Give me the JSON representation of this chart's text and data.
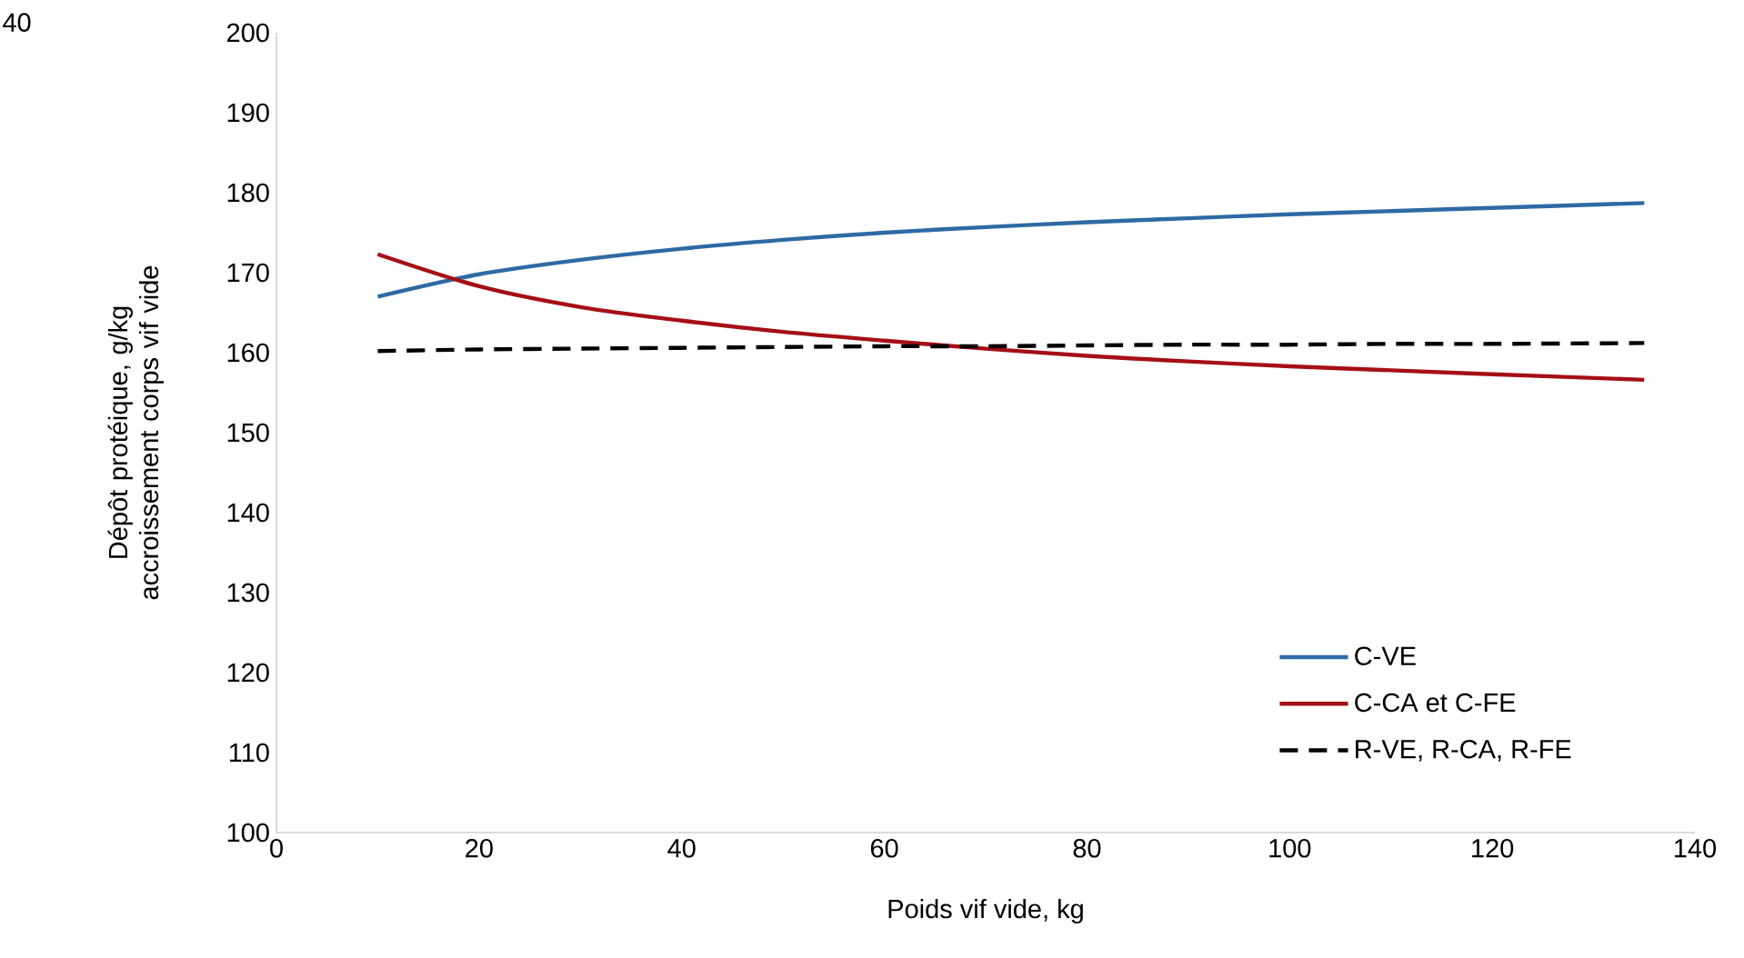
{
  "chart_data": {
    "type": "line",
    "xlabel": "Poids vif vide, kg",
    "ylabel": "Dépôt protéique, g/kg accroissement corps vif vide",
    "x": [
      10,
      20,
      30,
      40,
      50,
      60,
      70,
      80,
      90,
      100,
      110,
      120,
      135
    ],
    "series": [
      {
        "name": "C-VE",
        "color": "#2e6aa4",
        "line_style": "solid",
        "values": [
          167.0,
          169.8,
          171.6,
          173.0,
          174.1,
          175.0,
          175.7,
          176.3,
          176.8,
          177.3,
          177.7,
          178.1,
          178.7
        ]
      },
      {
        "name": "C-CA et C-FE",
        "color": "#a50f15",
        "line_style": "solid",
        "values": [
          172.3,
          168.3,
          165.7,
          164.0,
          162.6,
          161.5,
          160.5,
          159.6,
          158.9,
          158.3,
          157.8,
          157.3,
          156.6
        ]
      },
      {
        "name": "R-VE, R-CA, R-FE",
        "color": "#000000",
        "line_style": "dashed",
        "values": [
          160.2,
          160.4,
          160.5,
          160.6,
          160.7,
          160.8,
          160.8,
          160.9,
          161.0,
          161.0,
          161.1,
          161.1,
          161.2
        ]
      }
    ],
    "xlim": [
      0,
      140
    ],
    "xticks": [
      0,
      20,
      40,
      60,
      80,
      100,
      120,
      140
    ],
    "ylim": [
      100,
      200
    ],
    "yticks": [
      100,
      110,
      120,
      130,
      140,
      150,
      160,
      170,
      180,
      190,
      200
    ],
    "grid": false,
    "legend": "bottom right",
    "marker": "none",
    "annotations": [
      "40"
    ]
  }
}
